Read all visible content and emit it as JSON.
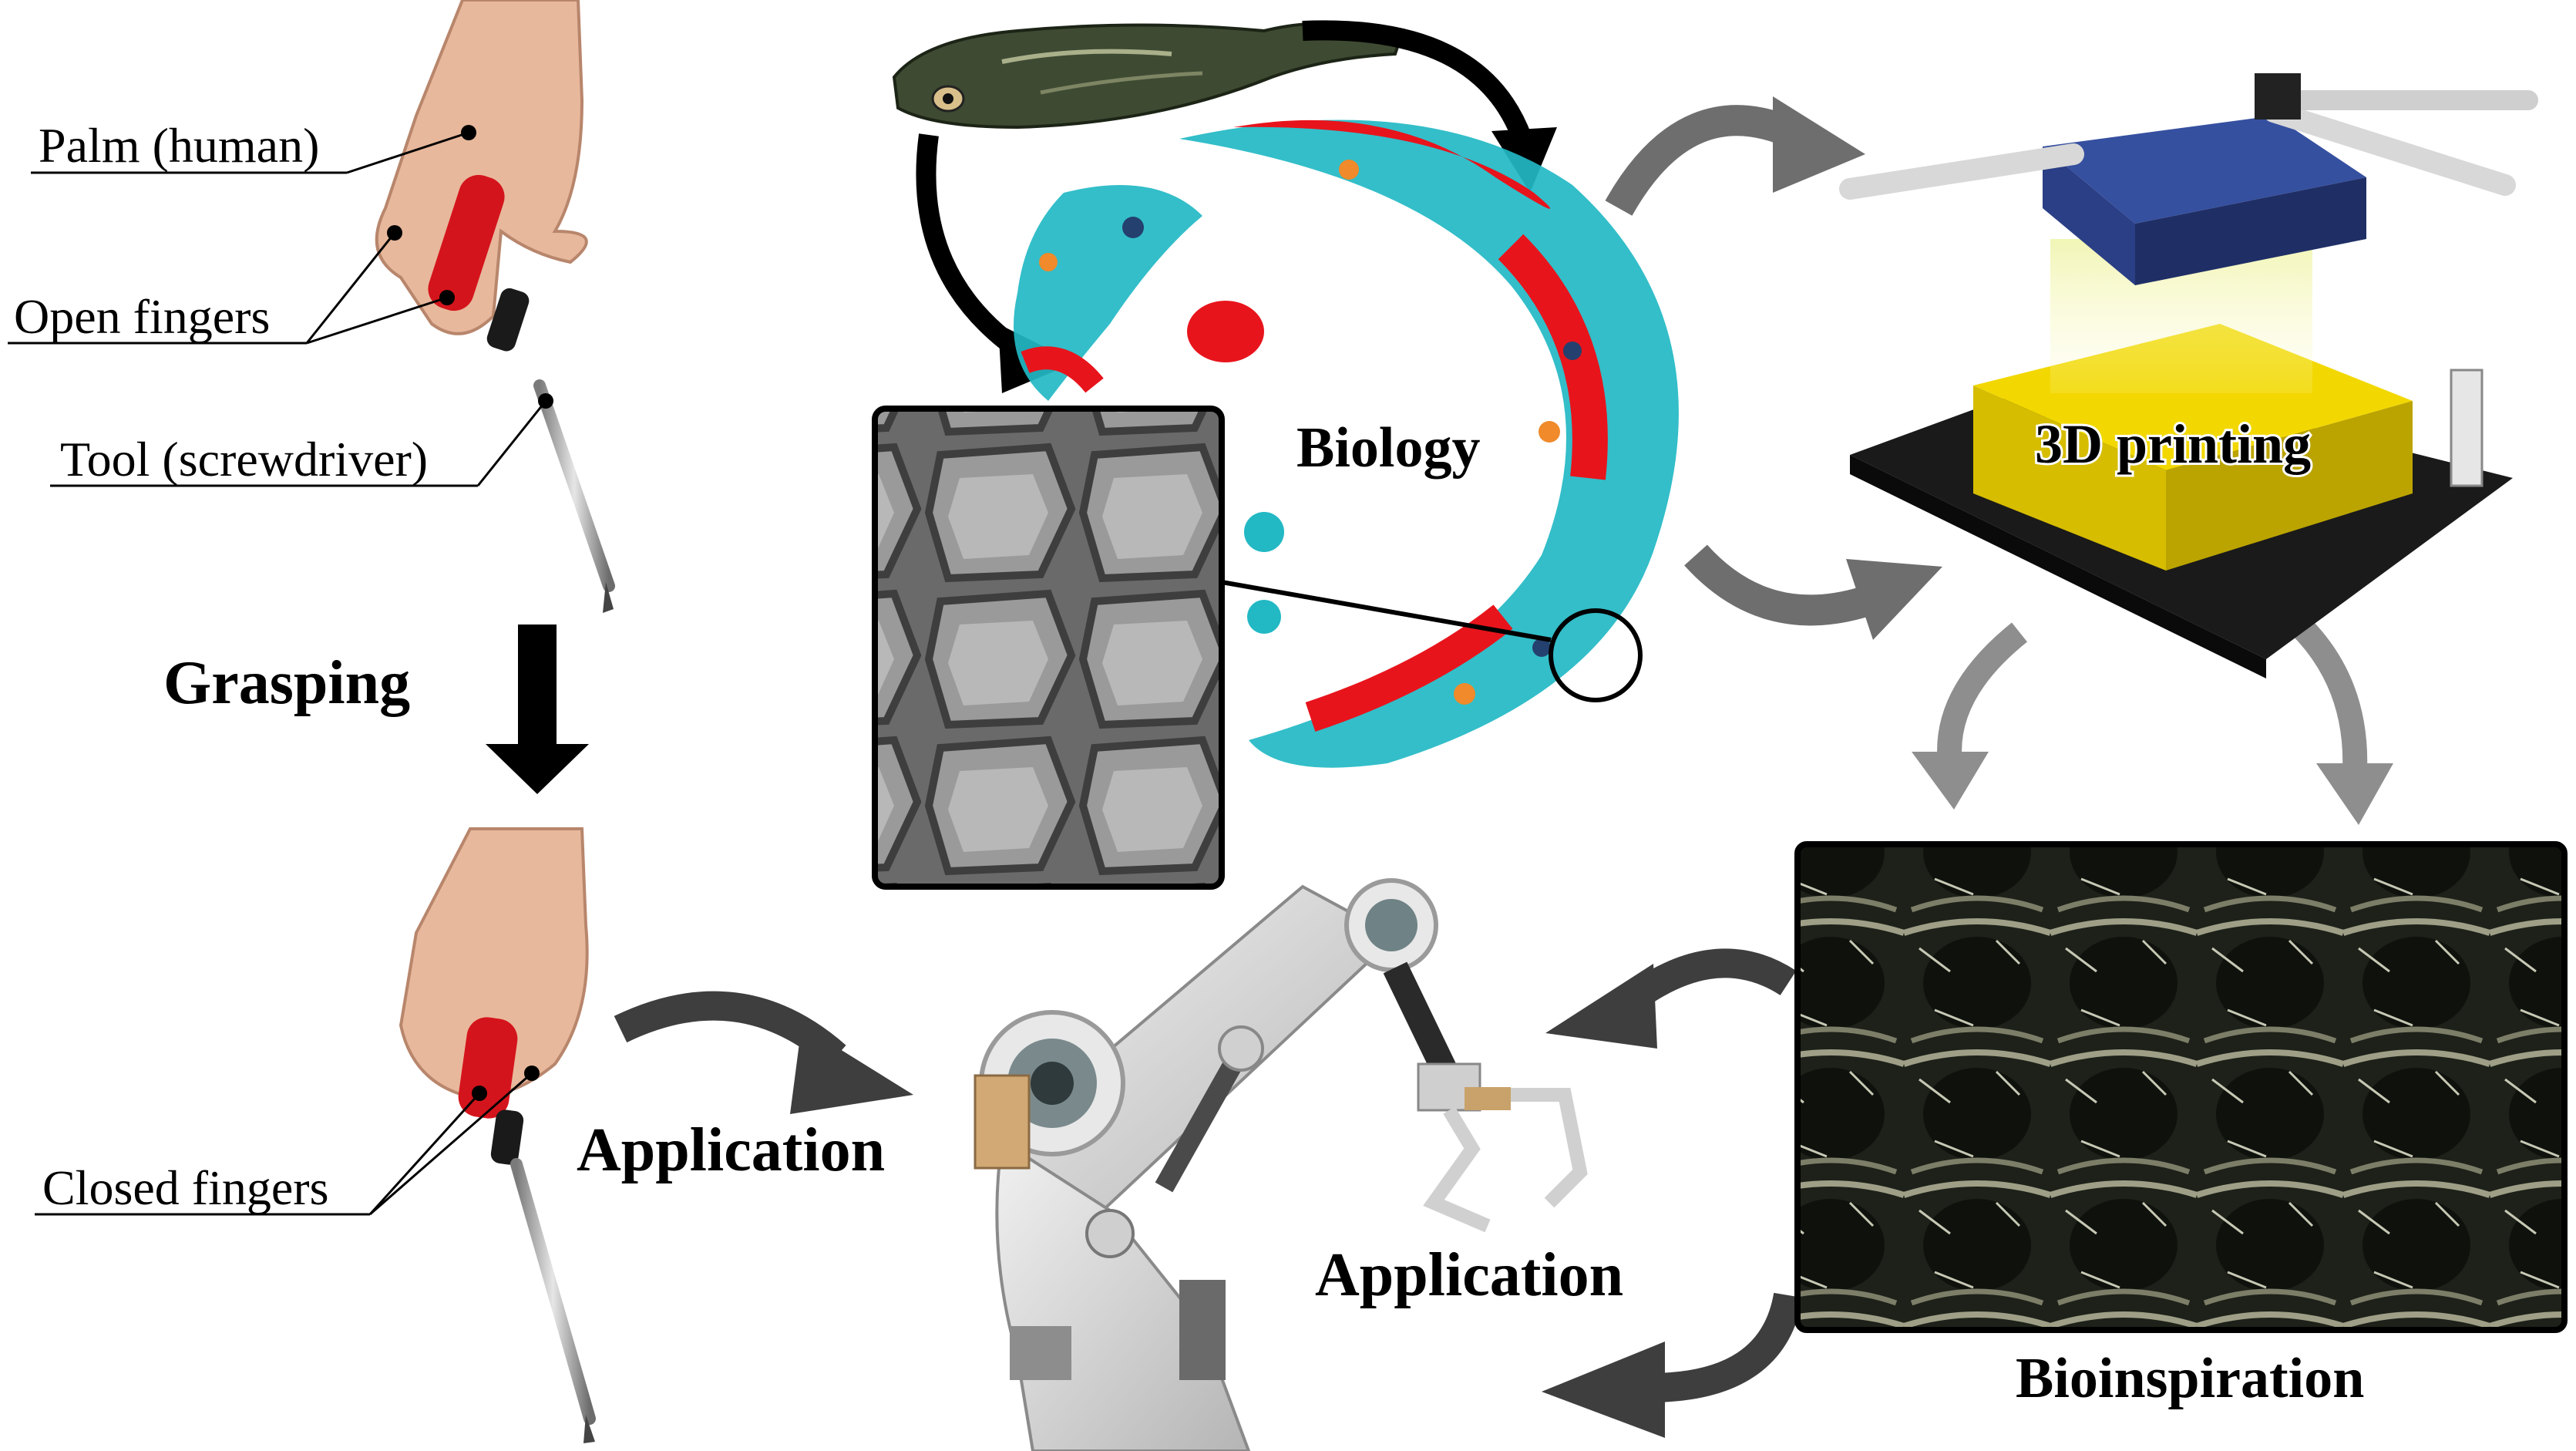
{
  "hand_labels": {
    "palm": "Palm (human)",
    "open_fingers": "Open fingers",
    "tool": "Tool (screwdriver)",
    "closed_fingers": "Closed fingers"
  },
  "steps": {
    "grasping": "Grasping",
    "biology": "Biology",
    "printing": "3D printing",
    "bioinspiration": "Bioinspiration",
    "application_left": "Application",
    "application_right": "Application"
  },
  "colors": {
    "scale_red": "#e8141c",
    "scale_cyan": "#22b8c4",
    "scale_orange": "#f08a2a",
    "scale_navy": "#24406e",
    "gray_arrow": "#6e6e6e",
    "black_arrow": "#000000",
    "printer_yellow": "#f2d800",
    "printer_blue": "#2b3f86",
    "tool_red": "#d4141c"
  }
}
